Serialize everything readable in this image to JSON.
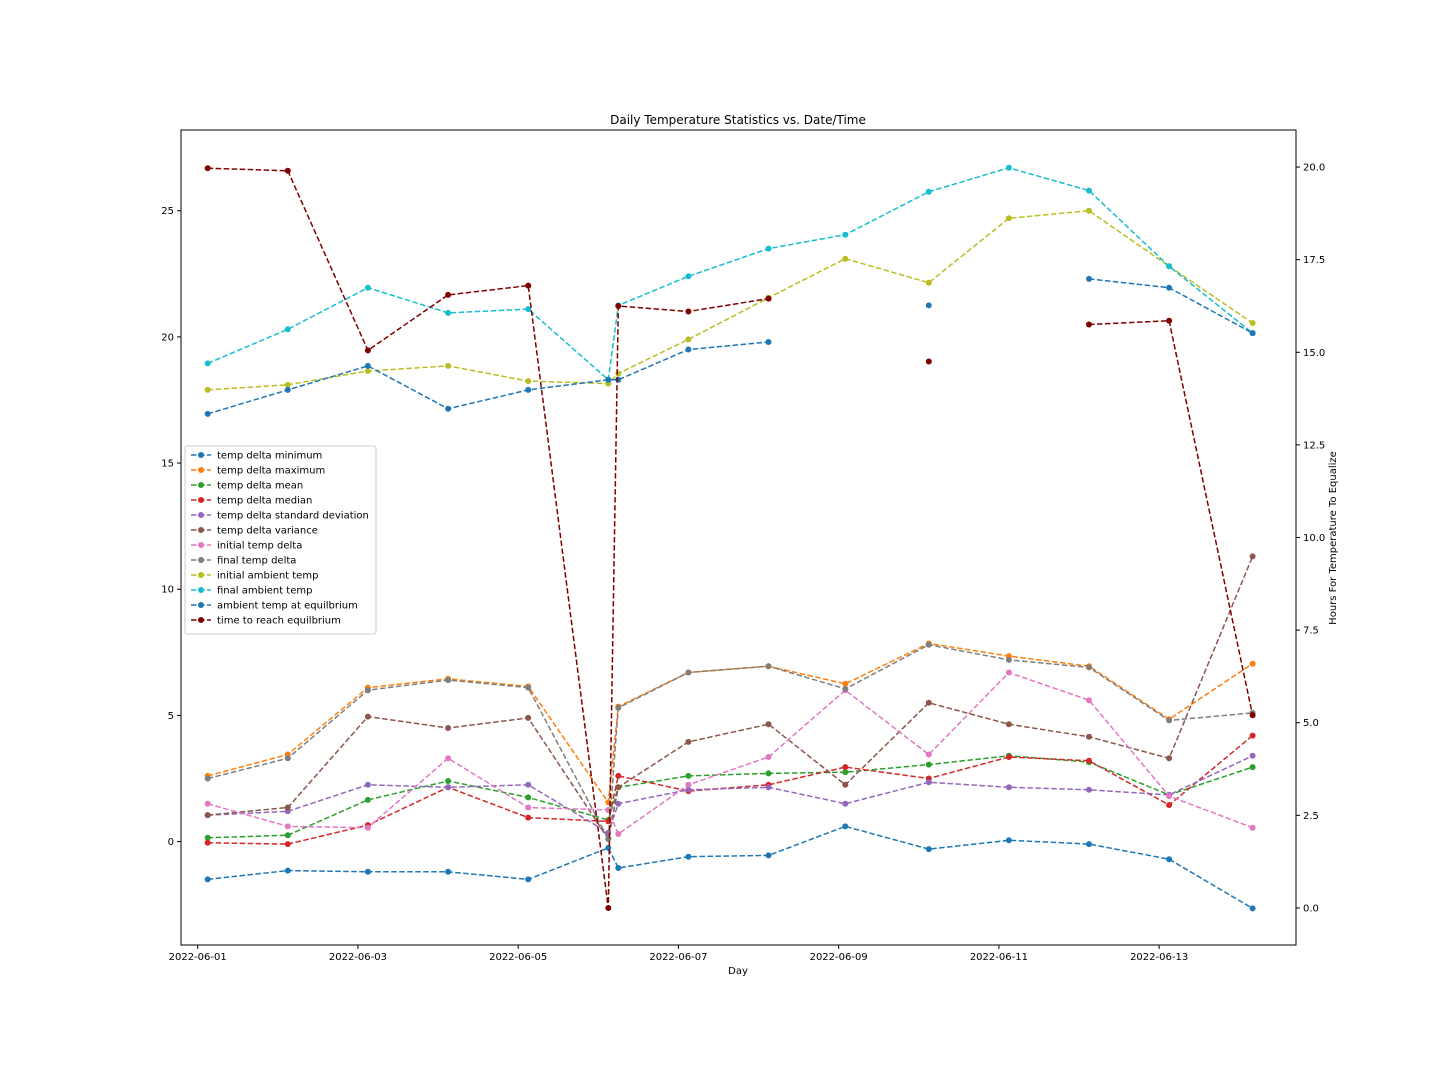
{
  "chart_data": {
    "type": "line",
    "title": "Daily Temperature Statistics vs. Date/Time",
    "xlabel": "Day",
    "ylabel": "",
    "y2label": "Hours For Temperature To Equalize",
    "xlim": [
      "2022-05-31T19:00",
      "2022-06-14T17:00"
    ],
    "ylim": [
      -4.1,
      28.2
    ],
    "y2lim": [
      -1.0,
      21.0
    ],
    "xticks": [
      "2022-06-01",
      "2022-06-03",
      "2022-06-05",
      "2022-06-07",
      "2022-06-09",
      "2022-06-11",
      "2022-06-13"
    ],
    "yticks": [
      "0",
      "5",
      "10",
      "15",
      "20",
      "25"
    ],
    "y2ticks": [
      "0.0",
      "2.5",
      "5.0",
      "7.5",
      "10.0",
      "12.5",
      "15.0",
      "17.5",
      "20.0"
    ],
    "grid": false,
    "legend_position": "center-left",
    "x": [
      "2022-06-01T03:00",
      "2022-06-02T03:00",
      "2022-06-03T03:00",
      "2022-06-04T03:00",
      "2022-06-05T03:00",
      "2022-06-06T03:00",
      "2022-06-06T06:00",
      "2022-06-07T03:00",
      "2022-06-08T03:00",
      "2022-06-09T02:00",
      "2022-06-10T03:00",
      "2022-06-11T03:00",
      "2022-06-12T03:00",
      "2022-06-13T03:00",
      "2022-06-14T04:00"
    ],
    "series": [
      {
        "name": "temp delta  minimum",
        "color": "#1f77b4",
        "axis": "left",
        "values": [
          -1.5,
          -1.15,
          -1.2,
          -1.2,
          -1.5,
          -0.25,
          -1.05,
          -0.6,
          -0.55,
          0.6,
          -0.3,
          0.05,
          -0.1,
          -0.7,
          -2.65
        ]
      },
      {
        "name": "temp delta  maximum",
        "color": "#ff7f0e",
        "axis": "left",
        "values": [
          2.6,
          3.45,
          6.1,
          6.45,
          6.15,
          1.55,
          5.35,
          6.7,
          6.95,
          6.25,
          7.85,
          7.35,
          6.95,
          4.85,
          7.05
        ]
      },
      {
        "name": "temp delta  mean",
        "color": "#2ca02c",
        "axis": "left",
        "values": [
          0.15,
          0.25,
          1.65,
          2.4,
          1.75,
          0.85,
          2.15,
          2.6,
          2.7,
          2.75,
          3.05,
          3.4,
          3.15,
          1.85,
          2.95
        ]
      },
      {
        "name": "temp delta  median",
        "color": "#d62728",
        "axis": "left",
        "values": [
          -0.05,
          -0.1,
          0.65,
          2.15,
          0.95,
          0.8,
          2.6,
          2.0,
          2.25,
          2.95,
          2.5,
          3.35,
          3.2,
          1.45,
          4.2
        ]
      },
      {
        "name": "temp delta  standard deviation",
        "color": "#9467bd",
        "axis": "left",
        "values": [
          1.05,
          1.2,
          2.25,
          2.15,
          2.25,
          0.35,
          1.5,
          2.05,
          2.15,
          1.5,
          2.35,
          2.15,
          2.05,
          1.85,
          3.4
        ]
      },
      {
        "name": "temp delta variance",
        "color": "#8c564b",
        "axis": "left",
        "values": [
          1.05,
          1.35,
          4.95,
          4.5,
          4.9,
          0.1,
          2.15,
          3.95,
          4.65,
          2.25,
          5.5,
          4.65,
          4.15,
          3.3,
          11.3
        ]
      },
      {
        "name": "initial temp delta",
        "color": "#e377c2",
        "axis": "left",
        "values": [
          1.5,
          0.6,
          0.55,
          3.3,
          1.35,
          1.25,
          0.3,
          2.25,
          3.35,
          6.0,
          3.45,
          6.7,
          5.6,
          1.8,
          0.55
        ]
      },
      {
        "name": "final temp delta",
        "color": "#7f7f7f",
        "axis": "left",
        "values": [
          2.5,
          3.3,
          6.0,
          6.4,
          6.1,
          0.1,
          5.3,
          6.7,
          6.95,
          6.05,
          7.8,
          7.2,
          6.9,
          4.8,
          5.1
        ]
      },
      {
        "name": "initial ambient temp",
        "color": "#bcbd22",
        "axis": "left",
        "values": [
          17.9,
          18.1,
          18.65,
          18.85,
          18.25,
          18.15,
          18.55,
          19.9,
          21.55,
          23.1,
          22.15,
          24.7,
          25.0,
          22.8,
          20.55
        ]
      },
      {
        "name": "final ambient temp",
        "color": "#17becf",
        "axis": "left",
        "values": [
          18.95,
          20.3,
          21.95,
          20.95,
          21.1,
          18.3,
          21.25,
          22.4,
          23.5,
          24.05,
          25.75,
          26.7,
          25.8,
          22.8,
          20.15
        ]
      },
      {
        "name": "ambient temp at equilbrium",
        "color": "#1f77b4",
        "axis": "left",
        "values": [
          16.95,
          17.9,
          18.85,
          17.15,
          17.9,
          18.3,
          18.3,
          19.5,
          19.8,
          null,
          21.25,
          null,
          22.3,
          21.95,
          20.15
        ]
      },
      {
        "name": "time to reach equilbrium",
        "color": "#800000",
        "axis": "right",
        "values": [
          19.97,
          19.9,
          15.05,
          16.55,
          16.8,
          0.0,
          16.25,
          16.1,
          16.45,
          null,
          14.75,
          null,
          15.75,
          15.85,
          5.2
        ]
      }
    ]
  }
}
